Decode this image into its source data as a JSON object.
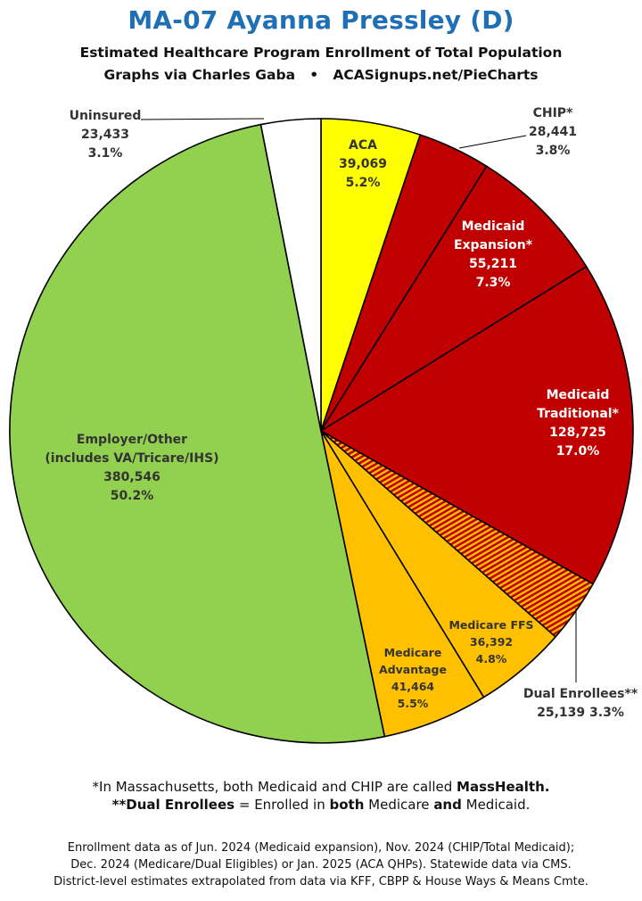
{
  "header": {
    "title": "MA-07 Ayanna Pressley (D)",
    "subtitle": "Estimated Healthcare Program Enrollment of Total Population",
    "credit": "Graphs via Charles Gaba   •   ACASignups.net/PieCharts"
  },
  "chart_data": {
    "type": "pie",
    "start_angle_deg": 0,
    "direction": "clockwise",
    "slices": [
      {
        "id": "aca",
        "lines": [
          "ACA",
          "39,069",
          "5.2%"
        ],
        "value": 39069,
        "percent": 5.2,
        "color": "#ffff00",
        "label_color": "#333333"
      },
      {
        "id": "chip",
        "lines": [
          "CHIP*",
          "28,441",
          "3.8%"
        ],
        "value": 28441,
        "percent": 3.8,
        "color": "#c00000",
        "label_color": "#333333"
      },
      {
        "id": "medicaid-expansion",
        "lines": [
          "Medicaid",
          "Expansion*",
          "55,211",
          "7.3%"
        ],
        "value": 55211,
        "percent": 7.3,
        "color": "#c00000",
        "label_color": "#ffffff"
      },
      {
        "id": "medicaid-traditional",
        "lines": [
          "Medicaid",
          "Traditional*",
          "128,725",
          "17.0%"
        ],
        "value": 128725,
        "percent": 17.0,
        "color": "#c00000",
        "label_color": "#ffffff"
      },
      {
        "id": "dual-enrollees",
        "lines": [
          "Dual Enrollees**",
          "25,139 3.3%"
        ],
        "value": 25139,
        "percent": 3.3,
        "color": "#c00000",
        "pattern": "stripes",
        "stripe_color": "#ffc000",
        "label_color": "#333333"
      },
      {
        "id": "medicare-ffs",
        "lines": [
          "Medicare FFS",
          "36,392",
          "4.8%"
        ],
        "value": 36392,
        "percent": 4.8,
        "color": "#ffc000",
        "label_color": "#333333"
      },
      {
        "id": "medicare-advantage",
        "lines": [
          "Medicare",
          "Advantage",
          "41,464",
          "5.5%"
        ],
        "value": 41464,
        "percent": 5.5,
        "color": "#ffc000",
        "label_color": "#333333"
      },
      {
        "id": "employer-other",
        "lines": [
          "Employer/Other",
          "(includes VA/Tricare/IHS)",
          "380,546",
          "50.2%"
        ],
        "value": 380546,
        "percent": 50.2,
        "color": "#92d050",
        "label_color": "#333333"
      },
      {
        "id": "uninsured",
        "lines": [
          "Uninsured",
          "23,433",
          "3.1%"
        ],
        "value": 23433,
        "percent": 3.1,
        "color": "#ffffff",
        "label_color": "#333333"
      }
    ]
  },
  "footnotes": {
    "note1_prefix": "*In Massachusetts, both Medicaid and CHIP are called ",
    "note1_bold": "MassHealth.",
    "note2_bold1": "**Dual Enrollees",
    "note2_mid": " = Enrolled in ",
    "note2_bold2": "both",
    "note2_mid2": " Medicare ",
    "note2_bold3": "and",
    "note2_end": " Medicaid."
  },
  "sources": {
    "line1": "Enrollment data as of Jun. 2024 (Medicaid expansion), Nov. 2024 (CHIP/Total Medicaid);",
    "line2": "Dec. 2024 (Medicare/Dual Eligibles) or Jan. 2025 (ACA QHPs). Statewide data via CMS.",
    "line3": "District-level estimates extrapolated from data via KFF, CBPP & House Ways & Means Cmte."
  }
}
